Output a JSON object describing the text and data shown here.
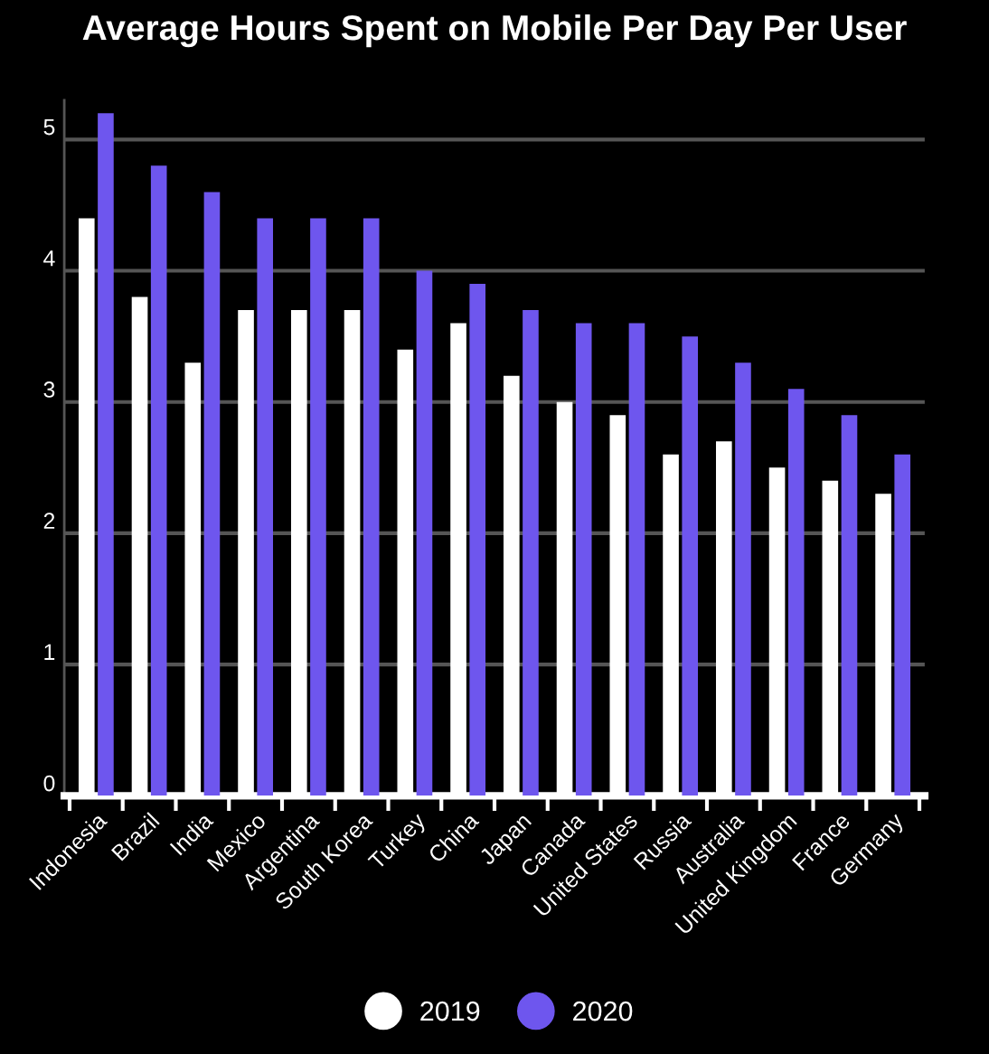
{
  "chart_data": {
    "type": "bar",
    "title": "Average Hours Spent on Mobile Per Day Per User",
    "categories": [
      "Indonesia",
      "Brazil",
      "India",
      "Mexico",
      "Argentina",
      "South Korea",
      "Turkey",
      "China",
      "Japan",
      "Canada",
      "United States",
      "Russia",
      "Australia",
      "United Kingdom",
      "France",
      "Germany"
    ],
    "series": [
      {
        "name": "2019",
        "color": "#ffffff",
        "values": [
          4.4,
          3.8,
          3.3,
          3.7,
          3.7,
          3.7,
          3.4,
          3.6,
          3.2,
          3.0,
          2.9,
          2.6,
          2.7,
          2.5,
          2.4,
          2.3
        ]
      },
      {
        "name": "2020",
        "color": "#6e56ee",
        "values": [
          5.2,
          4.8,
          4.6,
          4.4,
          4.4,
          4.4,
          4.0,
          3.9,
          3.7,
          3.6,
          3.6,
          3.5,
          3.3,
          3.1,
          2.9,
          2.6
        ]
      }
    ],
    "ylim": [
      0,
      5.3
    ],
    "yticks": [
      0,
      1,
      2,
      3,
      4,
      5
    ],
    "grid": "y",
    "legend": "bottom"
  }
}
